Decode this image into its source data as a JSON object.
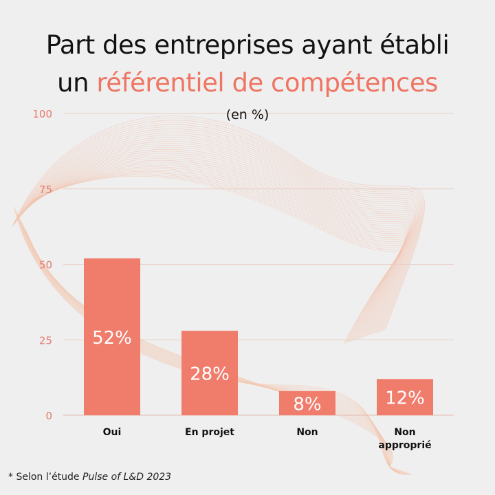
{
  "title": {
    "line1": "Part des entreprises ayant établi",
    "line2_prefix": "un ",
    "line2_accent": "référentiel de compétences"
  },
  "subtitle": "(en %)",
  "footnote": {
    "prefix": "* Selon l’étude ",
    "source": "Pulse of L&D 2023"
  },
  "colors": {
    "bar": "#f07c6c",
    "axis_label": "#e57a6c",
    "grid": "#e8cfc6",
    "accent": "#ef7563",
    "background": "#efefef"
  },
  "chart_data": {
    "type": "bar",
    "categories": [
      "Oui",
      "En projet",
      "Non",
      "Non approprié"
    ],
    "values": [
      52,
      28,
      8,
      12
    ],
    "value_labels": [
      "52%",
      "28%",
      "8%",
      "12%"
    ],
    "category_labels": [
      [
        "Oui"
      ],
      [
        "En projet"
      ],
      [
        "Non"
      ],
      [
        "Non",
        "approprié"
      ]
    ],
    "yticks": [
      0,
      25,
      50,
      75,
      100
    ],
    "ylim": [
      0,
      100
    ],
    "grid": true,
    "legend": "none"
  }
}
